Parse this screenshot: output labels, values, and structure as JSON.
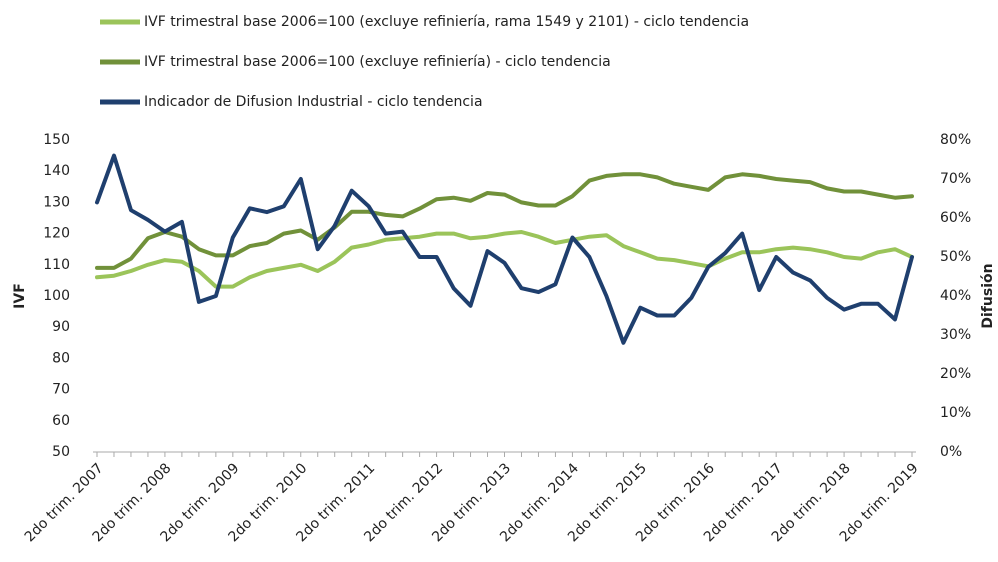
{
  "chart_data": {
    "type": "line",
    "categories": [
      "2do trim. 2007",
      null,
      null,
      null,
      "2do trim. 2008",
      null,
      null,
      null,
      "2do trim. 2009",
      null,
      null,
      null,
      "2do trim. 2010",
      null,
      null,
      null,
      "2do trim. 2011",
      null,
      null,
      null,
      "2do trim. 2012",
      null,
      null,
      null,
      "2do trim. 2013",
      null,
      null,
      null,
      "2do trim. 2014",
      null,
      null,
      null,
      "2do trim. 2015",
      null,
      null,
      null,
      "2do trim. 2016",
      null,
      null,
      null,
      "2do trim. 2017",
      null,
      null,
      null,
      "2do trim. 2018",
      null,
      null,
      null,
      "2do trim. 2019"
    ],
    "series": [
      {
        "name": "IVF trimestral base 2006=100 (excluye refiniería, rama 1549 y 2101) - ciclo tendencia",
        "color": "#9bc45a",
        "values": [
          106,
          106.5,
          108,
          110,
          111.5,
          111,
          108,
          103,
          103,
          106,
          108,
          109,
          110,
          108,
          111,
          115.5,
          116.5,
          118,
          118.5,
          119,
          120,
          120,
          118.5,
          119,
          120,
          120.5,
          119,
          117,
          118,
          119,
          119.5,
          116,
          114,
          112,
          111.5,
          110.5,
          109.5,
          112,
          114,
          114,
          115,
          115.5,
          115,
          114,
          112.5,
          112,
          114,
          115,
          112.5
        ]
      },
      {
        "name": "IVF trimestral base 2006=100 (excluye refiniería) - ciclo tendencia",
        "color": "#71913a",
        "values": [
          109,
          109,
          112,
          118.5,
          120.5,
          119,
          115,
          113,
          113,
          116,
          117,
          120,
          121,
          118,
          122,
          127,
          127,
          126,
          125.5,
          128,
          131,
          131.5,
          130.5,
          133,
          132.5,
          130,
          129,
          129,
          132,
          137,
          138.5,
          139,
          139,
          138,
          136,
          135,
          134,
          138,
          139,
          138.5,
          137.5,
          137,
          136.5,
          134.5,
          133.5,
          133.5,
          132.5,
          131.5,
          132
        ]
      },
      {
        "name": "Indicador de Difusion Industrial - ciclo tendencia",
        "color": "#1f3f6e",
        "axis": "y2",
        "values": [
          64,
          76,
          62,
          59.5,
          56.5,
          59,
          38.5,
          40,
          55,
          62.5,
          61.5,
          63,
          70,
          52,
          58,
          67,
          63,
          56,
          56.5,
          50,
          50,
          42,
          37.5,
          51.5,
          48.5,
          42,
          41,
          43,
          55,
          50,
          40,
          28,
          37,
          35,
          35,
          39.5,
          47.5,
          51,
          56,
          41.5,
          50,
          46,
          44,
          39.5,
          36.5,
          38,
          38,
          34,
          50
        ]
      }
    ],
    "ylabel": "IVF",
    "y2label": "Difusión",
    "ylim": [
      50,
      150
    ],
    "yticks": [
      50,
      60,
      70,
      80,
      90,
      100,
      110,
      120,
      130,
      140,
      150
    ],
    "y2lim": [
      0,
      80
    ],
    "y2ticks": [
      {
        "value": 0,
        "label": "0%"
      },
      {
        "value": 10,
        "label": "10%"
      },
      {
        "value": 20,
        "label": "20%"
      },
      {
        "value": 30,
        "label": "30%"
      },
      {
        "value": 40,
        "label": "40%"
      },
      {
        "value": 50,
        "label": "50%"
      },
      {
        "value": 60,
        "label": "60%"
      },
      {
        "value": 70,
        "label": "70%"
      },
      {
        "value": 80,
        "label": "80%"
      }
    ],
    "grid": false
  }
}
